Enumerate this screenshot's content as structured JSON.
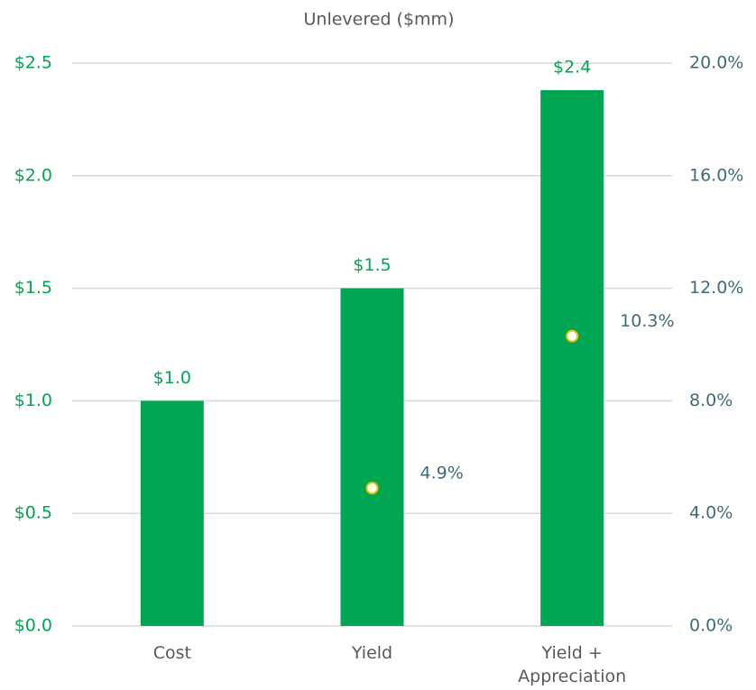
{
  "chart_data": {
    "type": "bar",
    "title": "Unlevered ($mm)",
    "categories": [
      "Cost",
      "Yield",
      "Yield + Appreciation"
    ],
    "series": [
      {
        "type": "bar",
        "color": "#00a651",
        "values": [
          1.0,
          1.5,
          2.38
        ],
        "value_labels": [
          "$1.0",
          "$1.5",
          "$2.4"
        ]
      },
      {
        "type": "scatter",
        "axis": "y2",
        "color": "#f2c200",
        "values": [
          null,
          4.9,
          10.3
        ],
        "value_labels": [
          null,
          "4.9%",
          "10.3%"
        ]
      }
    ],
    "ylim": [
      0,
      2.5
    ],
    "yticks": [
      {
        "value": 0,
        "label": "$0.0"
      },
      {
        "value": 0.5,
        "label": "$0.5"
      },
      {
        "value": 1.0,
        "label": "$1.0"
      },
      {
        "value": 1.5,
        "label": "$1.5"
      },
      {
        "value": 2.0,
        "label": "$2.0"
      },
      {
        "value": 2.5,
        "label": "$2.5"
      }
    ],
    "y2lim": [
      0,
      20
    ],
    "y2ticks": [
      {
        "value": 0,
        "label": "0.0%"
      },
      {
        "value": 4,
        "label": "4.0%"
      },
      {
        "value": 8,
        "label": "8.0%"
      },
      {
        "value": 12,
        "label": "12.0%"
      },
      {
        "value": 16,
        "label": "16.0%"
      },
      {
        "value": 20,
        "label": "20.0%"
      }
    ],
    "grid": true
  }
}
